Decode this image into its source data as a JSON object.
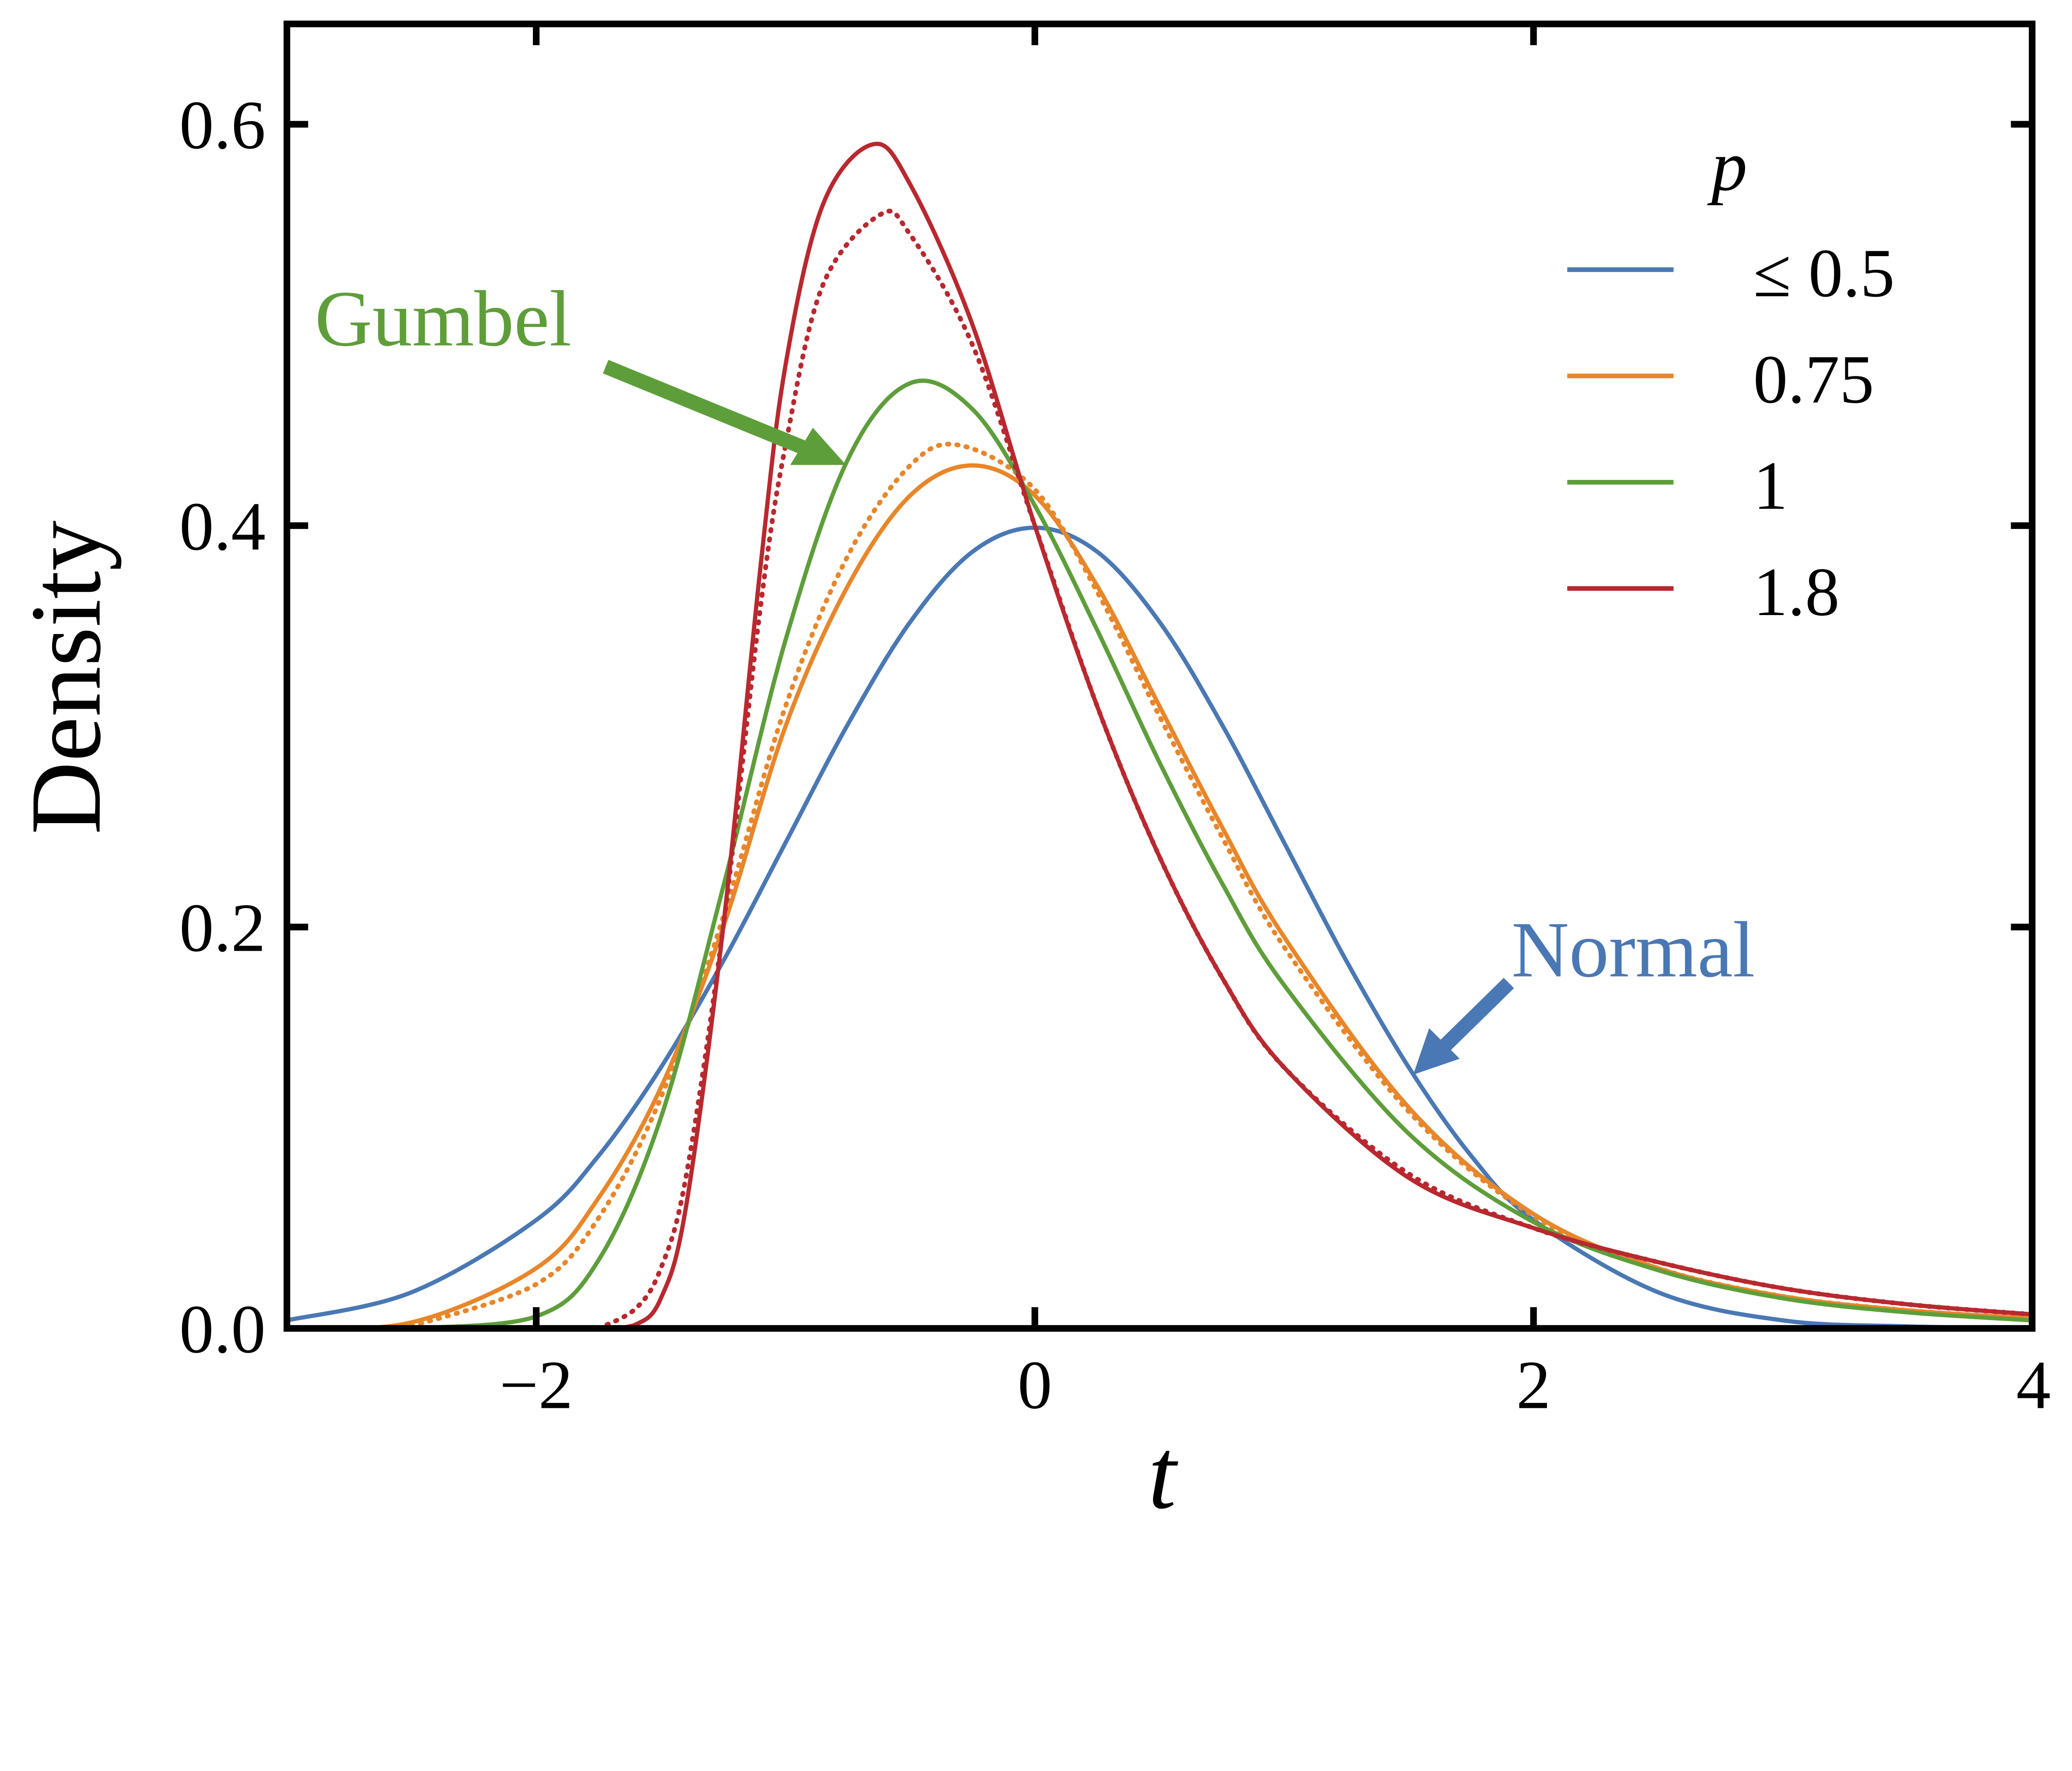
{
  "chart_data": {
    "type": "line",
    "xlabel": "t",
    "ylabel": "Density",
    "xlim": [
      -3,
      4
    ],
    "ylim": [
      0,
      0.65
    ],
    "xticks": [
      -2,
      0,
      2,
      4
    ],
    "xtick_labels": [
      "−2",
      "0",
      "2",
      "4"
    ],
    "yticks": [
      0.0,
      0.2,
      0.4,
      0.6
    ],
    "ytick_labels": [
      "0.0",
      "0.2",
      "0.4",
      "0.6"
    ],
    "grid": false,
    "legend": {
      "title": "p",
      "placement": "top-right"
    },
    "colors": {
      "blue": "#4a78b4",
      "orange": "#e8862a",
      "green": "#5e9e3a",
      "red": "#b8292f"
    },
    "series": [
      {
        "name": "≤ 0.5",
        "color": "#4a78b4",
        "style": "solid",
        "legend": true,
        "x": [
          -3,
          -2.5,
          -2,
          -1.75,
          -1.5,
          -1.25,
          -1,
          -0.75,
          -0.5,
          -0.25,
          0,
          0.25,
          0.5,
          0.75,
          1,
          1.25,
          1.5,
          1.75,
          2,
          2.5,
          3,
          3.5,
          4
        ],
        "y": [
          0.004,
          0.018,
          0.054,
          0.086,
          0.13,
          0.183,
          0.242,
          0.301,
          0.352,
          0.387,
          0.399,
          0.387,
          0.352,
          0.301,
          0.242,
          0.183,
          0.13,
          0.086,
          0.054,
          0.018,
          0.004,
          0.001,
          0.0
        ]
      },
      {
        "name": "0.75",
        "color": "#e8862a",
        "style": "solid",
        "legend": true,
        "x": [
          -3,
          -2.5,
          -2,
          -1.75,
          -1.5,
          -1.25,
          -1,
          -0.75,
          -0.5,
          -0.25,
          0,
          0.25,
          0.5,
          0.75,
          1,
          1.5,
          2,
          2.5,
          3,
          3.5,
          4
        ],
        "y": [
          0.0,
          0.003,
          0.03,
          0.065,
          0.12,
          0.2,
          0.3,
          0.37,
          0.415,
          0.43,
          0.415,
          0.37,
          0.31,
          0.25,
          0.195,
          0.11,
          0.057,
          0.03,
          0.016,
          0.009,
          0.005
        ]
      },
      {
        "color": "#e8862a",
        "style": "dotted",
        "legend": false,
        "x": [
          -2.5,
          -2,
          -1.75,
          -1.5,
          -1.25,
          -1,
          -0.75,
          -0.5,
          -0.3,
          0,
          0.25,
          0.5,
          0.75,
          1,
          1.5,
          2,
          2.5,
          3,
          3.5,
          4
        ],
        "y": [
          0.001,
          0.022,
          0.055,
          0.115,
          0.205,
          0.31,
          0.385,
          0.43,
          0.44,
          0.418,
          0.367,
          0.305,
          0.245,
          0.19,
          0.108,
          0.056,
          0.03,
          0.016,
          0.009,
          0.005
        ]
      },
      {
        "name": "1",
        "color": "#5e9e3a",
        "style": "solid",
        "legend": true,
        "x": [
          -2.5,
          -2,
          -1.75,
          -1.5,
          -1.25,
          -1,
          -0.75,
          -0.5,
          -0.25,
          0,
          0.25,
          0.5,
          0.75,
          1,
          1.5,
          2,
          2.5,
          3,
          3.5,
          4
        ],
        "y": [
          0.0,
          0.006,
          0.034,
          0.105,
          0.22,
          0.343,
          0.433,
          0.471,
          0.458,
          0.41,
          0.348,
          0.282,
          0.222,
          0.171,
          0.097,
          0.053,
          0.029,
          0.015,
          0.008,
          0.004
        ]
      },
      {
        "name": "1.8",
        "color": "#b8292f",
        "style": "solid",
        "legend": true,
        "x": [
          -1.75,
          -1.6,
          -1.5,
          -1.4,
          -1.25,
          -1.1,
          -1,
          -0.85,
          -0.65,
          -0.5,
          -0.25,
          0,
          0.25,
          0.5,
          0.75,
          1,
          1.5,
          2,
          2.5,
          3,
          3.5,
          4
        ],
        "y": [
          0.0,
          0.002,
          0.015,
          0.06,
          0.2,
          0.38,
          0.48,
          0.56,
          0.59,
          0.57,
          0.5,
          0.4,
          0.31,
          0.235,
          0.175,
          0.13,
          0.075,
          0.05,
          0.033,
          0.02,
          0.012,
          0.007
        ]
      },
      {
        "color": "#b8292f",
        "style": "dotted",
        "legend": false,
        "x": [
          -1.75,
          -1.6,
          -1.5,
          -1.4,
          -1.25,
          -1.1,
          -1,
          -0.85,
          -0.62,
          -0.5,
          -0.25,
          0,
          0.25,
          0.5,
          0.75,
          1,
          1.5,
          2,
          2.5,
          3,
          3.5,
          4
        ],
        "y": [
          0.0,
          0.01,
          0.03,
          0.075,
          0.2,
          0.36,
          0.44,
          0.52,
          0.555,
          0.545,
          0.49,
          0.4,
          0.31,
          0.235,
          0.175,
          0.13,
          0.077,
          0.05,
          0.033,
          0.02,
          0.012,
          0.007
        ]
      }
    ],
    "annotations": [
      {
        "text": "Gumbel",
        "color": "#5e9e3a"
      },
      {
        "text": "Normal",
        "color": "#4a78b4"
      }
    ]
  }
}
